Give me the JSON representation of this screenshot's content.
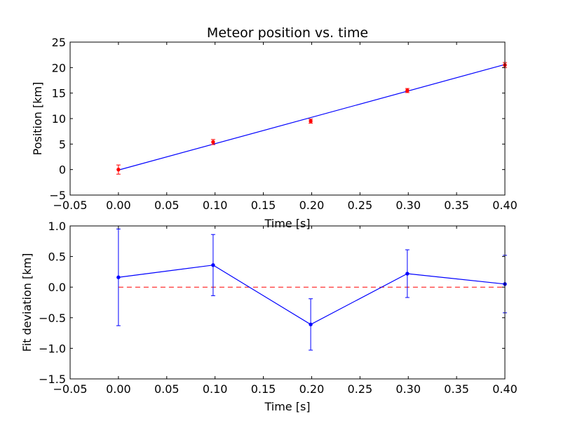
{
  "chart_data": [
    {
      "type": "line",
      "title": "Meteor position vs. time",
      "xlabel": "Time [s]",
      "ylabel": "Position [km]",
      "xlim": [
        -0.05,
        0.4
      ],
      "ylim": [
        -5,
        25
      ],
      "xticks": [
        -0.05,
        0.0,
        0.05,
        0.1,
        0.15,
        0.2,
        0.25,
        0.3,
        0.35,
        0.4
      ],
      "xtick_labels": [
        "−0.05",
        "0.00",
        "0.05",
        "0.10",
        "0.15",
        "0.20",
        "0.25",
        "0.30",
        "0.35",
        "0.40"
      ],
      "yticks": [
        -5,
        0,
        5,
        10,
        15,
        20,
        25
      ],
      "ytick_labels": [
        "−5",
        "0",
        "5",
        "10",
        "15",
        "20",
        "25"
      ],
      "grid": false,
      "legend": "none",
      "series": [
        {
          "kind": "fit_line",
          "color": "#0000ff",
          "x": [
            0.0,
            0.4
          ],
          "y": [
            -0.1,
            20.6
          ]
        },
        {
          "kind": "errorbar_points",
          "color": "#ff0000",
          "x": [
            0.0,
            0.098,
            0.199,
            0.299,
            0.4
          ],
          "y": [
            0.0,
            5.4,
            9.5,
            15.5,
            20.5
          ],
          "yerr": [
            0.9,
            0.5,
            0.4,
            0.4,
            0.5
          ]
        }
      ]
    },
    {
      "type": "line",
      "title": "",
      "xlabel": "Time [s]",
      "ylabel": "Fit deviation [km]",
      "xlim": [
        -0.05,
        0.4
      ],
      "ylim": [
        -1.5,
        1.0
      ],
      "xticks": [
        -0.05,
        0.0,
        0.05,
        0.1,
        0.15,
        0.2,
        0.25,
        0.3,
        0.35,
        0.4
      ],
      "xtick_labels": [
        "−0.05",
        "0.00",
        "0.05",
        "0.10",
        "0.15",
        "0.20",
        "0.25",
        "0.30",
        "0.35",
        "0.40"
      ],
      "yticks": [
        -1.5,
        -1.0,
        -0.5,
        0.0,
        0.5,
        1.0
      ],
      "ytick_labels": [
        "−1.5",
        "−1.0",
        "−0.5",
        "0.0",
        "0.5",
        "1.0"
      ],
      "grid": false,
      "legend": "none",
      "reference_line": {
        "y": 0.0,
        "color": "#ff0000",
        "style": "dashed"
      },
      "series": [
        {
          "kind": "errorbar_line",
          "color": "#0000ff",
          "x": [
            0.0,
            0.098,
            0.199,
            0.299,
            0.4
          ],
          "y": [
            0.16,
            0.36,
            -0.61,
            0.22,
            0.05
          ],
          "yerr": [
            0.79,
            0.5,
            0.42,
            0.39,
            0.47
          ]
        }
      ]
    }
  ]
}
